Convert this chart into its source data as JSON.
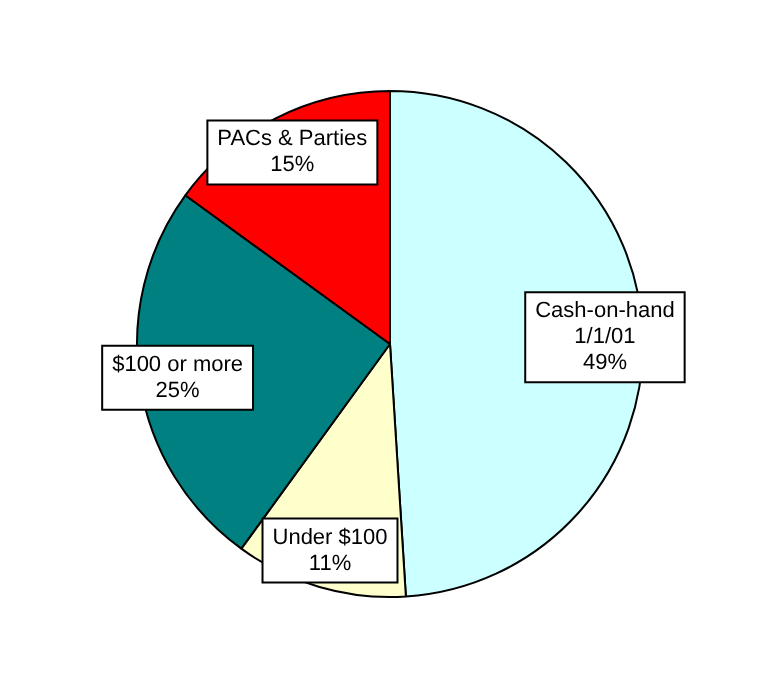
{
  "chart_data": {
    "type": "pie",
    "categories": [
      "Cash-on-hand 1/1/01",
      "Under $100",
      "$100 or more",
      "PACs & Parties"
    ],
    "values": [
      49,
      11,
      25,
      15
    ],
    "colors": [
      "#ccffff",
      "#ffffcc",
      "#008080",
      "#ff0000"
    ],
    "value_labels": [
      "49%",
      "11%",
      "25%",
      "15%"
    ],
    "legend": false
  }
}
